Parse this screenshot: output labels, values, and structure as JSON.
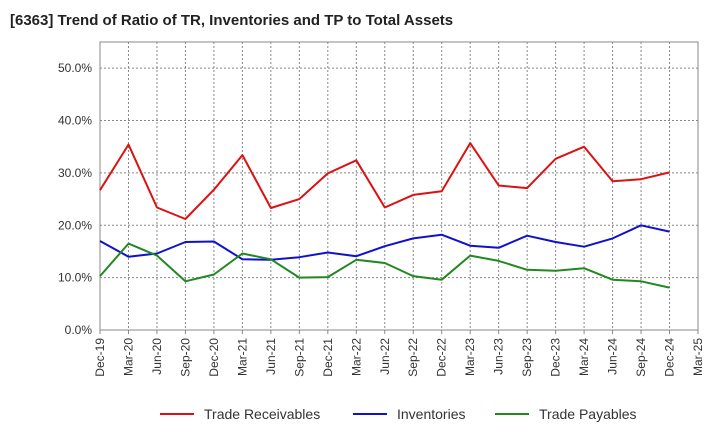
{
  "chart_data": {
    "type": "line",
    "title": "[6363]  Trend of Ratio of TR, Inventories and TP to Total Assets",
    "xlabel": "",
    "ylabel": "",
    "ylim": [
      0,
      55
    ],
    "y_ticks": [
      "0.0%",
      "10.0%",
      "20.0%",
      "30.0%",
      "40.0%",
      "50.0%"
    ],
    "y_tick_values": [
      0,
      10,
      20,
      30,
      40,
      50
    ],
    "x_tick_labels": [
      "Dec-19",
      "Mar-20",
      "Jun-20",
      "Sep-20",
      "Dec-20",
      "Mar-21",
      "Jun-21",
      "Sep-21",
      "Dec-21",
      "Mar-22",
      "Jun-22",
      "Sep-22",
      "Dec-22",
      "Mar-23",
      "Jun-23",
      "Sep-23",
      "Dec-23",
      "Mar-24",
      "Jun-24",
      "Sep-24",
      "Dec-24",
      "Mar-25"
    ],
    "x": [
      "Dec-19",
      "Mar-20",
      "Jun-20",
      "Sep-20",
      "Dec-20",
      "Mar-21",
      "Jun-21",
      "Sep-21",
      "Dec-21",
      "Mar-22",
      "Jun-22",
      "Sep-22",
      "Dec-22",
      "Mar-23",
      "Jun-23",
      "Sep-23",
      "Dec-23",
      "Mar-24",
      "Jun-24",
      "Sep-24",
      "Dec-24"
    ],
    "grid": true,
    "legend_position": "bottom",
    "series": [
      {
        "name": "Trade Receivables",
        "color": "#dd1111",
        "values": [
          26.7,
          35.4,
          23.4,
          21.2,
          26.8,
          33.4,
          23.3,
          25.0,
          29.9,
          32.4,
          23.4,
          25.8,
          26.5,
          35.7,
          27.6,
          27.1,
          32.7,
          35.0,
          28.4,
          28.8,
          30.1
        ]
      },
      {
        "name": "Inventories",
        "color": "#1111cc",
        "values": [
          17.0,
          14.0,
          14.6,
          16.8,
          16.9,
          13.5,
          13.4,
          13.9,
          14.8,
          14.1,
          16.0,
          17.5,
          18.2,
          16.1,
          15.7,
          18.0,
          16.8,
          15.9,
          17.5,
          20.0,
          18.8
        ]
      },
      {
        "name": "Trade Payables",
        "color": "#228822",
        "values": [
          10.3,
          16.5,
          14.2,
          9.3,
          10.6,
          14.6,
          13.5,
          10.0,
          10.1,
          13.4,
          12.8,
          10.3,
          9.6,
          14.2,
          13.2,
          11.5,
          11.3,
          11.8,
          9.6,
          9.3,
          8.1
        ]
      }
    ]
  }
}
